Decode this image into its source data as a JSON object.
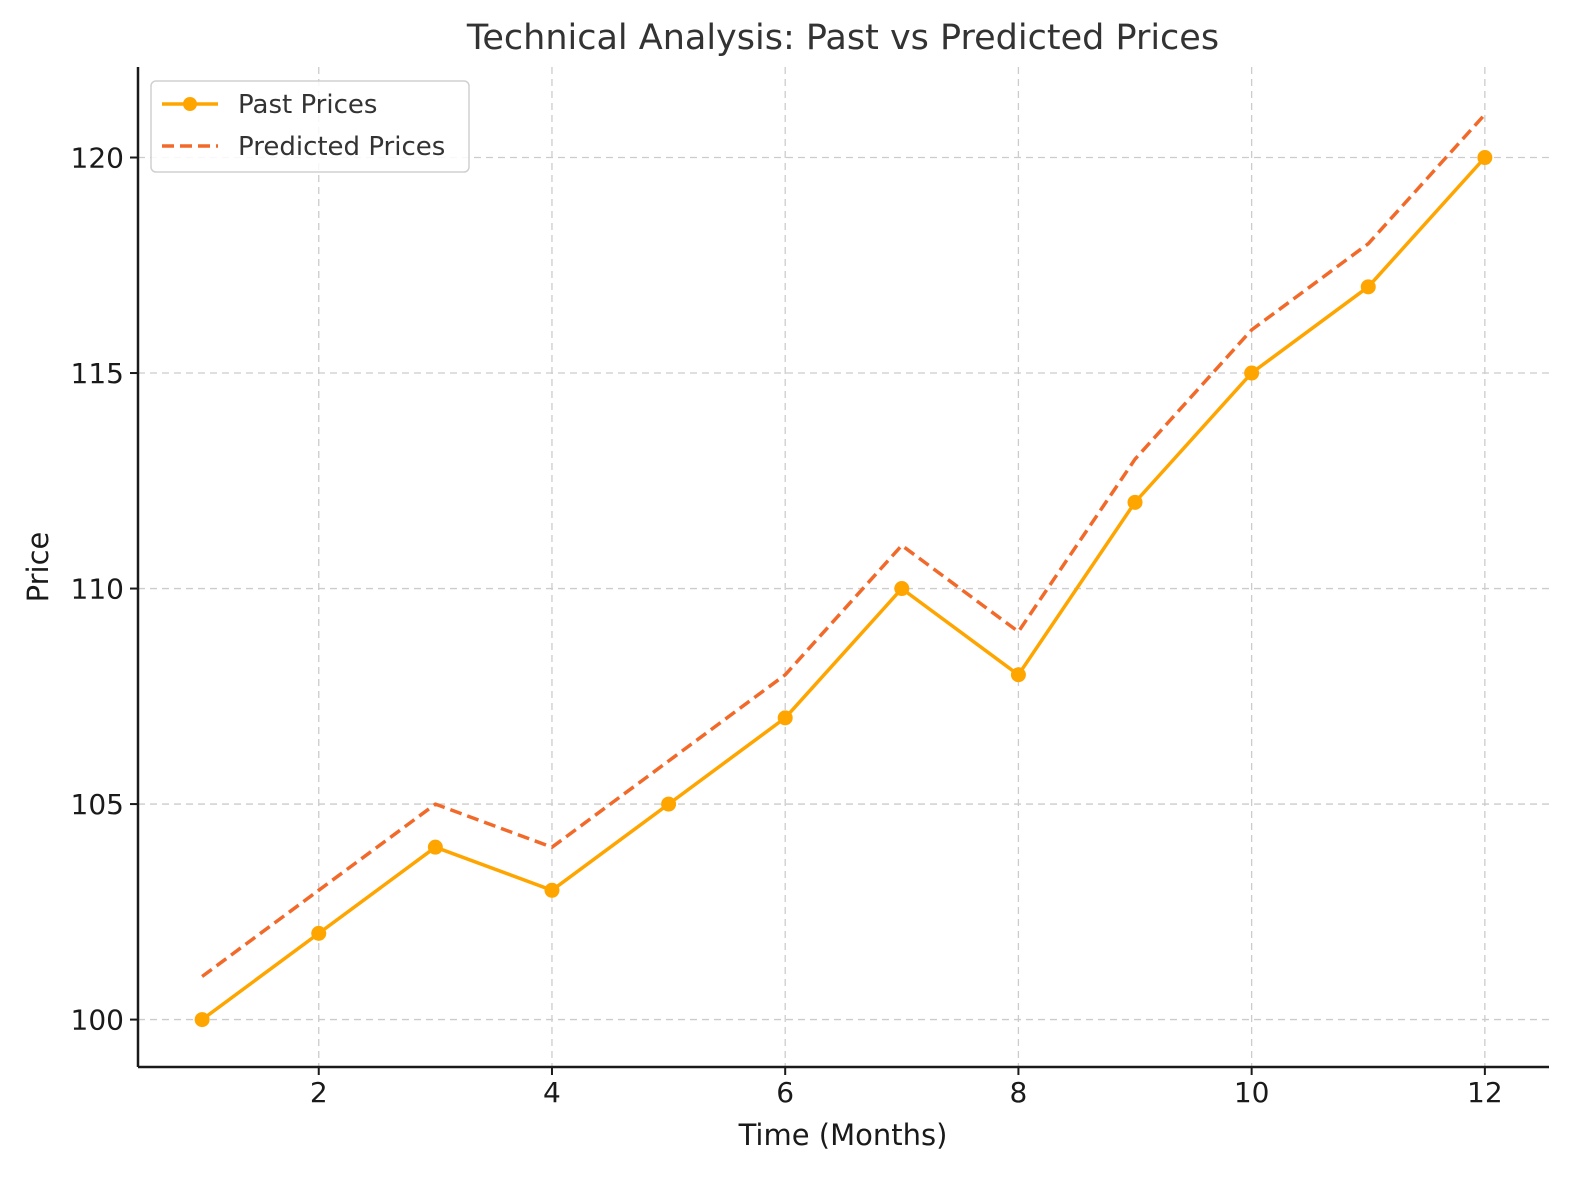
{
  "chart_data": {
    "type": "line",
    "title": "Technical Analysis: Past vs Predicted Prices",
    "xlabel": "Time (Months)",
    "ylabel": "Price",
    "x": [
      1,
      2,
      3,
      4,
      5,
      6,
      7,
      8,
      9,
      10,
      11,
      12
    ],
    "xlim": [
      0.45,
      12.55
    ],
    "ylim": [
      98.9,
      122.1
    ],
    "xticks": [
      2,
      4,
      6,
      8,
      10,
      12
    ],
    "xtick_labels": [
      "2",
      "4",
      "6",
      "8",
      "10",
      "12"
    ],
    "yticks": [
      100,
      105,
      110,
      115,
      120
    ],
    "ytick_labels": [
      "100",
      "105",
      "110",
      "115",
      "120"
    ],
    "grid": true,
    "legend_position": "top-left",
    "series": [
      {
        "name": "Past Prices",
        "values": [
          100,
          102,
          104,
          103,
          105,
          107,
          110,
          108,
          112,
          115,
          117,
          120
        ],
        "color": "#FFA500",
        "style": "solid",
        "marker": "circle"
      },
      {
        "name": "Predicted Prices",
        "values": [
          101,
          103,
          105,
          104,
          106,
          108,
          111,
          109,
          113,
          116,
          118,
          121
        ],
        "color": "#F26A2A",
        "style": "dashed",
        "marker": "none"
      }
    ]
  }
}
